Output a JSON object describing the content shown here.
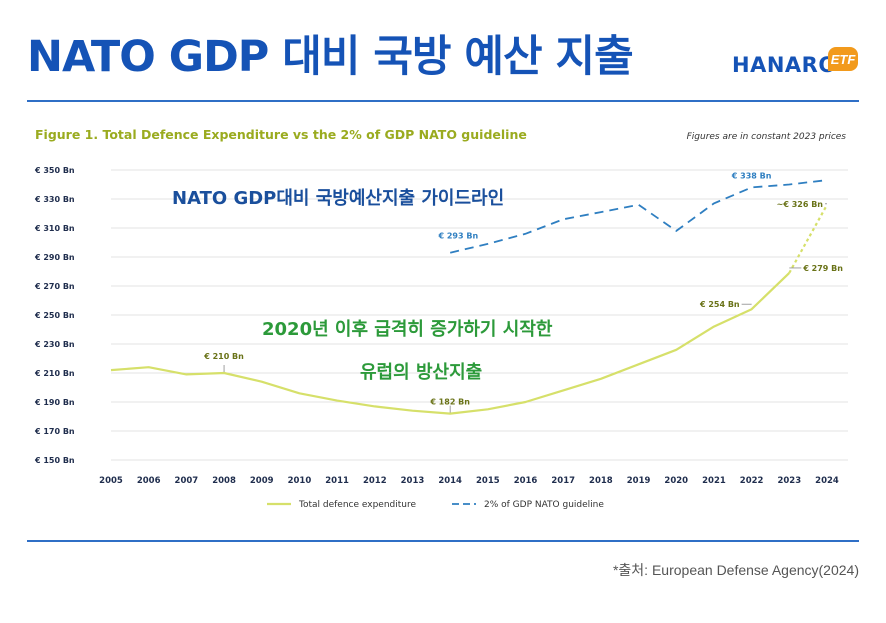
{
  "header": {
    "title": "NATO GDP 대비 국방 예산 지출",
    "logo_text": "HANARO",
    "logo_badge": "ETF"
  },
  "footer": {
    "source": "*출처: European Defense Agency(2024)"
  },
  "colors": {
    "brand_blue": "#1553b6",
    "expenditure_line": "#d6e06a",
    "guideline_line": "#2f7fc1",
    "annotation_blue": "#1a4f9c",
    "annotation_green": "#2c9a3a",
    "figure_title": "#9aab1f"
  },
  "chart_data": {
    "type": "line",
    "title": "Figure 1. Total Defence Expenditure vs the 2% of GDP NATO guideline",
    "subtitle": "Figures are in constant 2023 prices",
    "xlabel": "",
    "ylabel": "",
    "ylim": [
      150,
      350
    ],
    "y_ticks": [
      150,
      170,
      190,
      210,
      230,
      250,
      270,
      290,
      310,
      330,
      350
    ],
    "y_tick_labels": [
      "€ 150 Bn",
      "€ 170 Bn",
      "€ 190 Bn",
      "€ 210 Bn",
      "€ 230 Bn",
      "€ 250 Bn",
      "€ 270 Bn",
      "€ 290 Bn",
      "€ 310 Bn",
      "€ 330 Bn",
      "€ 350 Bn"
    ],
    "x": [
      "2005",
      "2006",
      "2007",
      "2008",
      "2009",
      "2010",
      "2011",
      "2012",
      "2013",
      "2014",
      "2015",
      "2016",
      "2017",
      "2018",
      "2019",
      "2020",
      "2021",
      "2022",
      "2023",
      "2024"
    ],
    "grid": true,
    "legend_placement": "bottom",
    "series": [
      {
        "name": "Total defence expenditure",
        "style": "solid",
        "values": [
          212,
          214,
          209,
          210,
          204,
          196,
          191,
          187,
          184,
          182,
          185,
          190,
          198,
          206,
          216,
          226,
          242,
          254,
          279,
          326
        ],
        "projected_last": true
      },
      {
        "name": "2% of GDP NATO guideline",
        "style": "dashed",
        "values": [
          null,
          null,
          null,
          null,
          null,
          null,
          null,
          null,
          null,
          293,
          299,
          306,
          316,
          321,
          326,
          308,
          327,
          338,
          340,
          343
        ]
      }
    ],
    "data_labels": [
      {
        "series": 0,
        "index": 3,
        "text": "€ 210 Bn"
      },
      {
        "series": 0,
        "index": 9,
        "text": "€ 182 Bn"
      },
      {
        "series": 0,
        "index": 17,
        "text": "€ 254 Bn"
      },
      {
        "series": 0,
        "index": 18,
        "text": "€ 279 Bn"
      },
      {
        "series": 0,
        "index": 19,
        "text": "~€ 326 Bn"
      },
      {
        "series": 1,
        "index": 9,
        "text": "€ 293 Bn"
      },
      {
        "series": 1,
        "index": 17,
        "text": "€ 338 Bn"
      }
    ],
    "annotations": [
      {
        "text": "NATO GDP대비 국방예산지출 가이드라인",
        "color": "blue"
      },
      {
        "text": "2020년 이후 급격히 증가하기 시작한",
        "color": "green"
      },
      {
        "text": "유럽의 방산지출",
        "color": "green"
      }
    ]
  }
}
